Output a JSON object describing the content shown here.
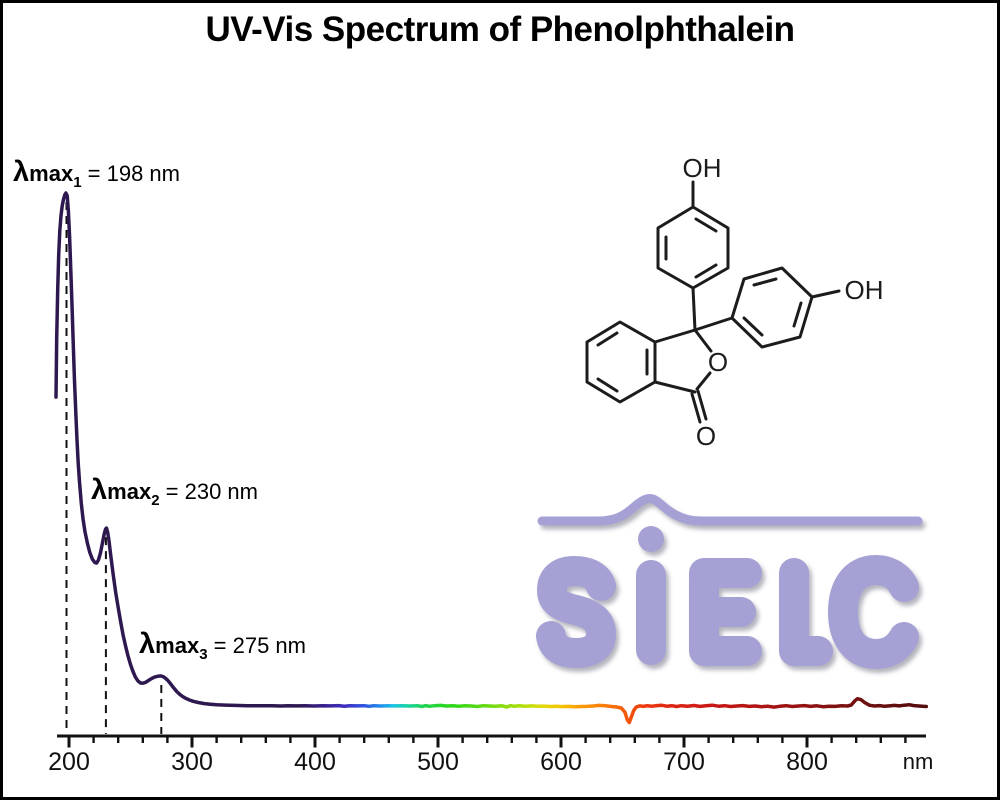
{
  "title": "UV-Vis Spectrum of Phenolphthalein",
  "peaks": [
    {
      "lambda": "λ",
      "max_label": "max",
      "sub": "1",
      "value": " = 198 nm",
      "nm": 198,
      "absorbance": 1.0
    },
    {
      "lambda": "λ",
      "max_label": "max",
      "sub": "2",
      "value": " = 230 nm",
      "nm": 230,
      "absorbance": 0.376
    },
    {
      "lambda": "λ",
      "max_label": "max",
      "sub": "3",
      "value": " = 275 nm",
      "nm": 275,
      "absorbance": 0.1005
    }
  ],
  "axis": {
    "unit": "nm",
    "major_ticks": [
      200,
      300,
      400,
      500,
      600,
      700,
      800
    ],
    "minor_start": 200,
    "minor_end": 880,
    "minor_step": 20,
    "range_nm": [
      189.4,
      897
    ]
  },
  "molecule": {
    "name": "phenolphthalein",
    "labels": {
      "top_oh": "OH",
      "right_oh": "OH",
      "ring_o": "O",
      "carbonyl_o": "O"
    }
  },
  "logo": {
    "text": "SiELC",
    "color": "#a6a1d5"
  },
  "colors": {
    "curve_uv": "#2d1950",
    "ink": "#111111"
  },
  "chart_data": {
    "type": "line",
    "title": "UV-Vis Spectrum of Phenolphthalein",
    "xlabel": "nm",
    "ylabel": "absorbance (unlabeled axis, arbitrary units)",
    "xlim": [
      189.4,
      897
    ],
    "x_ticks_major": [
      200,
      300,
      400,
      500,
      600,
      700,
      800
    ],
    "x_ticks_minor_step": 20,
    "grid": false,
    "legend": false,
    "peaks_nm": [
      198,
      230,
      275
    ],
    "artifact_dip_nm": 655.5,
    "line_gradient_stops": [
      [
        190,
        "#2d1950"
      ],
      [
        386,
        "#2d1950"
      ],
      [
        408,
        "#3a2090"
      ],
      [
        425,
        "#4030c0"
      ],
      [
        440,
        "#2f55e0"
      ],
      [
        452,
        "#2288ea"
      ],
      [
        463,
        "#1cc0e6"
      ],
      [
        474,
        "#18d2a8"
      ],
      [
        488,
        "#22d254"
      ],
      [
        510,
        "#2cd61c"
      ],
      [
        540,
        "#66da14"
      ],
      [
        565,
        "#a8de0e"
      ],
      [
        585,
        "#e0da0a"
      ],
      [
        600,
        "#f7c407"
      ],
      [
        615,
        "#fa9d06"
      ],
      [
        635,
        "#f97c08"
      ],
      [
        652,
        "#f55a0a"
      ],
      [
        668,
        "#ec3a0f"
      ],
      [
        690,
        "#dd2413"
      ],
      [
        720,
        "#cb1815"
      ],
      [
        755,
        "#b31414"
      ],
      [
        795,
        "#951212"
      ],
      [
        835,
        "#761010"
      ],
      [
        875,
        "#5f0d0d"
      ],
      [
        897,
        "#540c0c"
      ]
    ],
    "series": [
      {
        "name": "absorbance",
        "points": [
          [
            189.4,
            0.62
          ],
          [
            190,
            0.73
          ],
          [
            190.8,
            0.82
          ],
          [
            191.6,
            0.885
          ],
          [
            192.5,
            0.93
          ],
          [
            193.5,
            0.958
          ],
          [
            194.5,
            0.976
          ],
          [
            195.5,
            0.988
          ],
          [
            196.5,
            0.996
          ],
          [
            197.5,
            1.0
          ],
          [
            198.5,
            0.995
          ],
          [
            199.5,
            0.966
          ],
          [
            200.5,
            0.918
          ],
          [
            201.5,
            0.856
          ],
          [
            202.5,
            0.786
          ],
          [
            203.5,
            0.716
          ],
          [
            204.5,
            0.65
          ],
          [
            205.5,
            0.591
          ],
          [
            206.5,
            0.54
          ],
          [
            207.5,
            0.497
          ],
          [
            208.5,
            0.462
          ],
          [
            210,
            0.422
          ],
          [
            211.5,
            0.392
          ],
          [
            213,
            0.369
          ],
          [
            215,
            0.347
          ],
          [
            217,
            0.33
          ],
          [
            219,
            0.318
          ],
          [
            221,
            0.312
          ],
          [
            222.5,
            0.311
          ],
          [
            224,
            0.317
          ],
          [
            225.5,
            0.329
          ],
          [
            227,
            0.346
          ],
          [
            228.5,
            0.364
          ],
          [
            229.7,
            0.374
          ],
          [
            230.5,
            0.376
          ],
          [
            231.5,
            0.368
          ],
          [
            232.5,
            0.352
          ],
          [
            234,
            0.324
          ],
          [
            236,
            0.288
          ],
          [
            238,
            0.256
          ],
          [
            240,
            0.228
          ],
          [
            242,
            0.201
          ],
          [
            244,
            0.177
          ],
          [
            246,
            0.156
          ],
          [
            248,
            0.138
          ],
          [
            250,
            0.122
          ],
          [
            252,
            0.109
          ],
          [
            254,
            0.0985
          ],
          [
            256,
            0.0915
          ],
          [
            258,
            0.0878
          ],
          [
            260,
            0.0872
          ],
          [
            262,
            0.0885
          ],
          [
            264,
            0.0912
          ],
          [
            266,
            0.0942
          ],
          [
            268,
            0.0968
          ],
          [
            270,
            0.0988
          ],
          [
            272,
            0.1
          ],
          [
            273.5,
            0.1005
          ],
          [
            275,
            0.1005
          ],
          [
            276.5,
            0.0995
          ],
          [
            278,
            0.0972
          ],
          [
            280,
            0.0932
          ],
          [
            282,
            0.0878
          ],
          [
            284,
            0.0818
          ],
          [
            286,
            0.076
          ],
          [
            288,
            0.0708
          ],
          [
            290,
            0.0665
          ],
          [
            292.5,
            0.0622
          ],
          [
            295,
            0.0588
          ],
          [
            298,
            0.0558
          ],
          [
            301,
            0.0535
          ],
          [
            305,
            0.0512
          ],
          [
            310,
            0.0492
          ],
          [
            315,
            0.048
          ],
          [
            320,
            0.0472
          ],
          [
            327,
            0.0464
          ],
          [
            335,
            0.0458
          ],
          [
            345,
            0.0453
          ],
          [
            355,
            0.0451
          ],
          [
            365,
            0.0452
          ],
          [
            372,
            0.0446
          ],
          [
            378,
            0.0452
          ],
          [
            385,
            0.0448
          ],
          [
            392,
            0.0451
          ],
          [
            399,
            0.0447
          ],
          [
            406,
            0.0452
          ],
          [
            413,
            0.0448
          ],
          [
            419,
            0.0454
          ],
          [
            424,
            0.0443
          ],
          [
            428,
            0.0452
          ],
          [
            434,
            0.0448
          ],
          [
            440,
            0.0453
          ],
          [
            444,
            0.0442
          ],
          [
            448,
            0.0452
          ],
          [
            453,
            0.0447
          ],
          [
            459,
            0.0452
          ],
          [
            465,
            0.0448
          ],
          [
            471,
            0.0453
          ],
          [
            477,
            0.0446
          ],
          [
            483,
            0.0452
          ],
          [
            487,
            0.0437
          ],
          [
            490,
            0.0455
          ],
          [
            493,
            0.0441
          ],
          [
            497,
            0.0452
          ],
          [
            502,
            0.0459
          ],
          [
            507,
            0.0447
          ],
          [
            512,
            0.0453
          ],
          [
            517,
            0.0444
          ],
          [
            522,
            0.0452
          ],
          [
            527,
            0.0447
          ],
          [
            532,
            0.0438
          ],
          [
            537,
            0.0452
          ],
          [
            542,
            0.0447
          ],
          [
            547,
            0.0443
          ],
          [
            552,
            0.0451
          ],
          [
            556,
            0.0428
          ],
          [
            559,
            0.0455
          ],
          [
            562,
            0.0441
          ],
          [
            566,
            0.045
          ],
          [
            571,
            0.0444
          ],
          [
            576,
            0.0448
          ],
          [
            581,
            0.0441
          ],
          [
            586,
            0.0445
          ],
          [
            591,
            0.0438
          ],
          [
            596,
            0.0442
          ],
          [
            601,
            0.0436
          ],
          [
            606,
            0.044
          ],
          [
            611,
            0.0433
          ],
          [
            616,
            0.0437
          ],
          [
            621,
            0.044
          ],
          [
            626,
            0.0447
          ],
          [
            631,
            0.0458
          ],
          [
            636,
            0.045
          ],
          [
            641,
            0.0438
          ],
          [
            645,
            0.0428
          ],
          [
            649,
            0.041
          ],
          [
            652,
            0.033
          ],
          [
            654,
            0.0185
          ],
          [
            655.5,
            0.014
          ],
          [
            657,
            0.023
          ],
          [
            659,
            0.036
          ],
          [
            661,
            0.0425
          ],
          [
            664,
            0.0448
          ],
          [
            667,
            0.044
          ],
          [
            670,
            0.0452
          ],
          [
            674,
            0.0443
          ],
          [
            678,
            0.0455
          ],
          [
            682,
            0.046
          ],
          [
            686,
            0.0443
          ],
          [
            690,
            0.0452
          ],
          [
            694,
            0.0437
          ],
          [
            698,
            0.0453
          ],
          [
            703,
            0.0444
          ],
          [
            708,
            0.0457
          ],
          [
            713,
            0.044
          ],
          [
            718,
            0.0451
          ],
          [
            723,
            0.0461
          ],
          [
            728,
            0.0444
          ],
          [
            733,
            0.0452
          ],
          [
            738,
            0.0437
          ],
          [
            743,
            0.0447
          ],
          [
            748,
            0.0455
          ],
          [
            753,
            0.0439
          ],
          [
            758,
            0.0447
          ],
          [
            763,
            0.0433
          ],
          [
            768,
            0.0444
          ],
          [
            773,
            0.0426
          ],
          [
            778,
            0.0441
          ],
          [
            783,
            0.0452
          ],
          [
            788,
            0.0437
          ],
          [
            793,
            0.0447
          ],
          [
            798,
            0.0455
          ],
          [
            803,
            0.0439
          ],
          [
            808,
            0.045
          ],
          [
            813,
            0.0434
          ],
          [
            818,
            0.0444
          ],
          [
            823,
            0.0439
          ],
          [
            828,
            0.0451
          ],
          [
            833,
            0.0447
          ],
          [
            836,
            0.0465
          ],
          [
            839,
            0.0545
          ],
          [
            841,
            0.0582
          ],
          [
            844,
            0.0565
          ],
          [
            847,
            0.051
          ],
          [
            851,
            0.046
          ],
          [
            855,
            0.0446
          ],
          [
            859,
            0.0454
          ],
          [
            863,
            0.0441
          ],
          [
            867,
            0.0449
          ],
          [
            871,
            0.0458
          ],
          [
            875,
            0.0449
          ],
          [
            879,
            0.0462
          ],
          [
            883,
            0.0471
          ],
          [
            887,
            0.0455
          ],
          [
            891,
            0.0446
          ],
          [
            894,
            0.0442
          ],
          [
            897,
            0.0437
          ]
        ]
      }
    ]
  }
}
